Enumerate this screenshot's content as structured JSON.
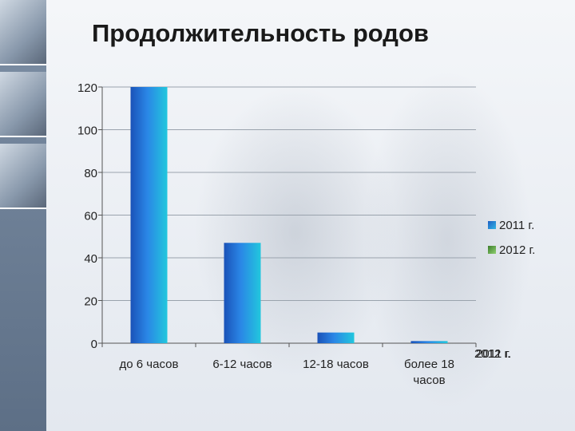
{
  "page": {
    "title": "Продолжительность родов"
  },
  "chart_data": {
    "type": "bar",
    "title": "Продолжительность родов",
    "categories": [
      "до 6 часов",
      "6-12 часов",
      "12-18 часов",
      "более 18 часов"
    ],
    "category_lines": [
      [
        "до 6 часов"
      ],
      [
        "6-12 часов"
      ],
      [
        "12-18 часов"
      ],
      [
        "более 18",
        "часов"
      ]
    ],
    "series": [
      {
        "name": "2011 г.",
        "values": [
          120,
          47,
          5,
          1
        ],
        "color": "#2a7fd6"
      },
      {
        "name": "2012 г.",
        "values": [
          0,
          0,
          0,
          0
        ],
        "color": "#4c9a3a"
      }
    ],
    "ylim": [
      0,
      120
    ],
    "yticks": [
      0,
      20,
      40,
      60,
      80,
      100,
      120
    ],
    "xlabel": "",
    "ylabel": "",
    "grid": true,
    "legend": "right",
    "depth_axis_labels": [
      "2012 г.",
      "2011 г."
    ]
  }
}
